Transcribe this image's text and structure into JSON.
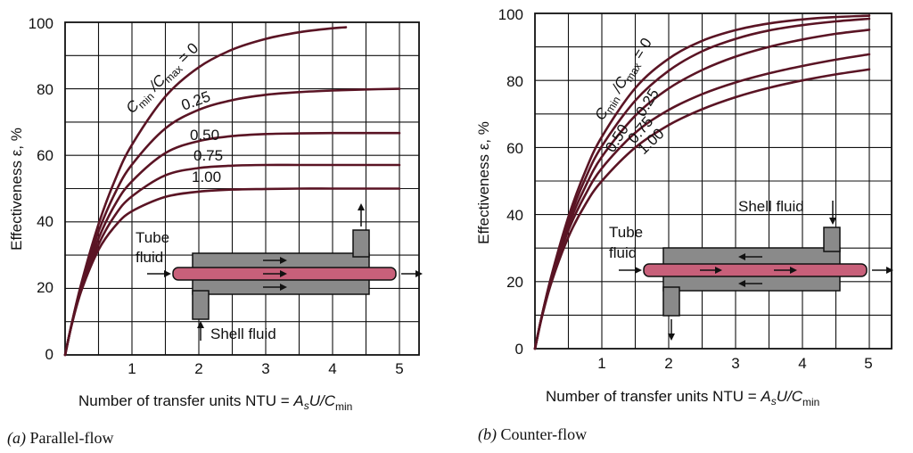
{
  "colors": {
    "curve": "#5a1424",
    "grid": "#111111",
    "tube": "#c8607a",
    "shell": "#8a8a8a"
  },
  "chart_data": [
    {
      "id": "parallel",
      "type": "line",
      "caption_letter": "(a)",
      "caption_text": " Parallel-flow",
      "xlabel_prefix": "Number of transfer units NTU = ",
      "xlabel_formula": "A",
      "xlabel_sub1": "s",
      "xlabel_mid": "U/C",
      "xlabel_sub2": "min",
      "ylabel": "Effectiveness ε, %",
      "xlim": [
        0,
        5.3
      ],
      "ylim": [
        0,
        100
      ],
      "x_ticks": [
        "1",
        "2",
        "3",
        "4",
        "5"
      ],
      "y_ticks": [
        "0",
        "20",
        "40",
        "60",
        "80",
        "100"
      ],
      "ratio_title": "C",
      "ratio_sub1": "min",
      "ratio_mid": " /C",
      "ratio_sub2": "max",
      "ratio_tail": " = 0",
      "series": [
        {
          "name": "0",
          "label": "",
          "x": [
            0,
            0.1,
            0.25,
            0.5,
            0.75,
            1,
            1.5,
            2,
            2.5,
            3,
            3.5,
            4,
            4.2
          ],
          "y": [
            0,
            9.5,
            22.1,
            39.3,
            52.8,
            63.2,
            77.7,
            86.5,
            91.8,
            95.0,
            97.0,
            98.2,
            98.5
          ]
        },
        {
          "name": "0.25",
          "label": "0.25",
          "x": [
            0,
            0.1,
            0.25,
            0.5,
            0.75,
            1,
            1.5,
            2,
            2.5,
            3,
            3.5,
            4,
            4.5,
            5
          ],
          "y": [
            0,
            9.4,
            21.5,
            37.1,
            48.8,
            57.2,
            68.1,
            73.7,
            76.6,
            78.2,
            79.0,
            79.5,
            79.8,
            80
          ]
        },
        {
          "name": "0.50",
          "label": "0.50",
          "x": [
            0,
            0.1,
            0.25,
            0.5,
            0.75,
            1,
            1.5,
            2,
            2.5,
            3,
            3.5,
            4,
            4.5,
            5
          ],
          "y": [
            0,
            9.3,
            20.9,
            35.0,
            45.3,
            52.2,
            60.7,
            64.3,
            65.8,
            66.4,
            66.6,
            66.7,
            66.7,
            66.7
          ]
        },
        {
          "name": "0.75",
          "label": "0.75",
          "x": [
            0,
            0.1,
            0.25,
            0.5,
            0.75,
            1,
            1.5,
            2,
            2.5,
            3,
            3.5,
            4,
            4.5,
            5
          ],
          "y": [
            0,
            9.3,
            20.4,
            33.2,
            42.1,
            47.7,
            54.0,
            56.2,
            56.9,
            57.1,
            57.1,
            57.1,
            57.1,
            57.1
          ]
        },
        {
          "name": "1.00",
          "label": "1.00",
          "x": [
            0,
            0.1,
            0.25,
            0.5,
            0.75,
            1,
            1.5,
            2,
            2.5,
            3,
            3.5,
            4,
            4.5,
            5
          ],
          "y": [
            0,
            9.1,
            19.7,
            31.6,
            38.8,
            43.2,
            47.5,
            49.1,
            49.7,
            49.9,
            50,
            50,
            50,
            50
          ]
        }
      ],
      "tube_label_1": "Tube",
      "tube_label_2": "fluid",
      "shell_label": "Shell fluid"
    },
    {
      "id": "counter",
      "type": "line",
      "caption_letter": "(b)",
      "caption_text": " Counter-flow",
      "xlabel_prefix": "Number of transfer units NTU = ",
      "xlabel_formula": "A",
      "xlabel_sub1": "s",
      "xlabel_mid": "U/C",
      "xlabel_sub2": "min",
      "ylabel": "Effectiveness ε, %",
      "xlim": [
        0,
        5.3
      ],
      "ylim": [
        0,
        100
      ],
      "x_ticks": [
        "1",
        "2",
        "3",
        "4",
        "5"
      ],
      "y_ticks": [
        "0",
        "20",
        "40",
        "60",
        "80",
        "100"
      ],
      "ratio_title": "C",
      "ratio_sub1": "min",
      "ratio_mid": " /C",
      "ratio_sub2": "max",
      "ratio_tail": " = 0",
      "series": [
        {
          "name": "0",
          "label": "",
          "x": [
            0,
            0.1,
            0.25,
            0.5,
            0.75,
            1,
            1.5,
            2,
            2.5,
            3,
            3.5,
            4,
            4.5,
            5
          ],
          "y": [
            0,
            9.5,
            22.1,
            39.3,
            52.8,
            63.2,
            77.7,
            86.5,
            91.8,
            95.0,
            97.0,
            98.2,
            98.9,
            99.3
          ]
        },
        {
          "name": "0.25",
          "label": "0.25",
          "x": [
            0,
            0.1,
            0.25,
            0.5,
            0.75,
            1,
            1.5,
            2,
            2.5,
            3,
            3.5,
            4,
            4.5,
            5
          ],
          "y": [
            0,
            9.5,
            21.7,
            38.0,
            50.6,
            60.4,
            74.0,
            82.9,
            88.7,
            92.4,
            94.9,
            96.5,
            97.6,
            98.4
          ]
        },
        {
          "name": "0.50",
          "label": "0.50",
          "x": [
            0,
            0.1,
            0.25,
            0.5,
            0.75,
            1,
            1.5,
            2,
            2.5,
            3,
            3.5,
            4,
            4.5,
            5
          ],
          "y": [
            0,
            9.4,
            21.3,
            36.7,
            48.2,
            57.2,
            69.5,
            77.6,
            83.1,
            87.1,
            90.0,
            92.2,
            93.9,
            95.1
          ]
        },
        {
          "name": "0.75",
          "label": "0.75",
          "x": [
            0,
            0.1,
            0.25,
            0.5,
            0.75,
            1,
            1.5,
            2,
            2.5,
            3,
            3.5,
            4,
            4.5,
            5
          ],
          "y": [
            0,
            9.4,
            21.0,
            35.3,
            45.8,
            53.8,
            64.4,
            71.2,
            75.9,
            79.4,
            82.1,
            84.3,
            86.2,
            87.8
          ]
        },
        {
          "name": "1.00",
          "label": "1.00",
          "x": [
            0,
            0.1,
            0.25,
            0.5,
            0.75,
            1,
            1.5,
            2,
            2.5,
            3,
            3.5,
            4,
            4.5,
            5
          ],
          "y": [
            0,
            9.1,
            20.0,
            33.3,
            42.9,
            50.0,
            60.0,
            66.7,
            71.4,
            75.0,
            77.8,
            80.0,
            81.8,
            83.3
          ]
        }
      ],
      "tube_label_1": "Tube",
      "tube_label_2": "fluid",
      "shell_label": "Shell fluid"
    }
  ]
}
